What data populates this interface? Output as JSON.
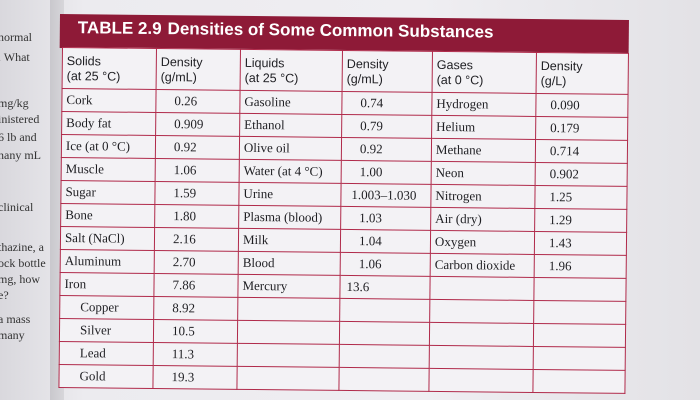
{
  "margin_fragments": [
    "normal",
    ". What",
    "mg/kg",
    "inistered",
    "6 lb and",
    "nany mL",
    "clinical",
    "thazine, a",
    "ock bottle",
    "mg, how",
    "e?",
    "a mass",
    "many"
  ],
  "table": {
    "number": "TABLE 2.9",
    "title": "Densities of Some Common Substances",
    "headers": [
      {
        "l1": "Solids",
        "l2": "(at 25 °C)"
      },
      {
        "l1": "Density",
        "l2": "(g/mL)"
      },
      {
        "l1": "Liquids",
        "l2": "(at 25 °C)"
      },
      {
        "l1": "Density",
        "l2": "(g/mL)"
      },
      {
        "l1": "Gases",
        "l2": "(at 0 °C)"
      },
      {
        "l1": "Density",
        "l2": "(g/L)"
      }
    ],
    "rows": [
      [
        "Cork",
        "0.26",
        "Gasoline",
        "0.74",
        "Hydrogen",
        "0.090"
      ],
      [
        "Body fat",
        "0.909",
        "Ethanol",
        "0.79",
        "Helium",
        "0.179"
      ],
      [
        "Ice (at 0 °C)",
        "0.92",
        "Olive oil",
        "0.92",
        "Methane",
        "0.714"
      ],
      [
        "Muscle",
        "1.06",
        "Water (at 4 °C)",
        "1.00",
        "Neon",
        "0.902"
      ],
      [
        "Sugar",
        "1.59",
        "Urine",
        "1.003–1.030",
        "Nitrogen",
        "1.25"
      ],
      [
        "Bone",
        "1.80",
        "Plasma (blood)",
        "1.03",
        "Air (dry)",
        "1.29"
      ],
      [
        "Salt (NaCl)",
        "2.16",
        "Milk",
        "1.04",
        "Oxygen",
        "1.43"
      ],
      [
        "Aluminum",
        "2.70",
        "Blood",
        "1.06",
        "Carbon dioxide",
        "1.96"
      ],
      [
        "Iron",
        "7.86",
        "Mercury",
        "13.6",
        "",
        ""
      ],
      [
        "Copper",
        "8.92",
        "",
        "",
        "",
        ""
      ],
      [
        "Silver",
        "10.5",
        "",
        "",
        "",
        ""
      ],
      [
        "Lead",
        "11.3",
        "",
        "",
        "",
        ""
      ],
      [
        "Gold",
        "19.3",
        "",
        "",
        "",
        ""
      ]
    ]
  }
}
